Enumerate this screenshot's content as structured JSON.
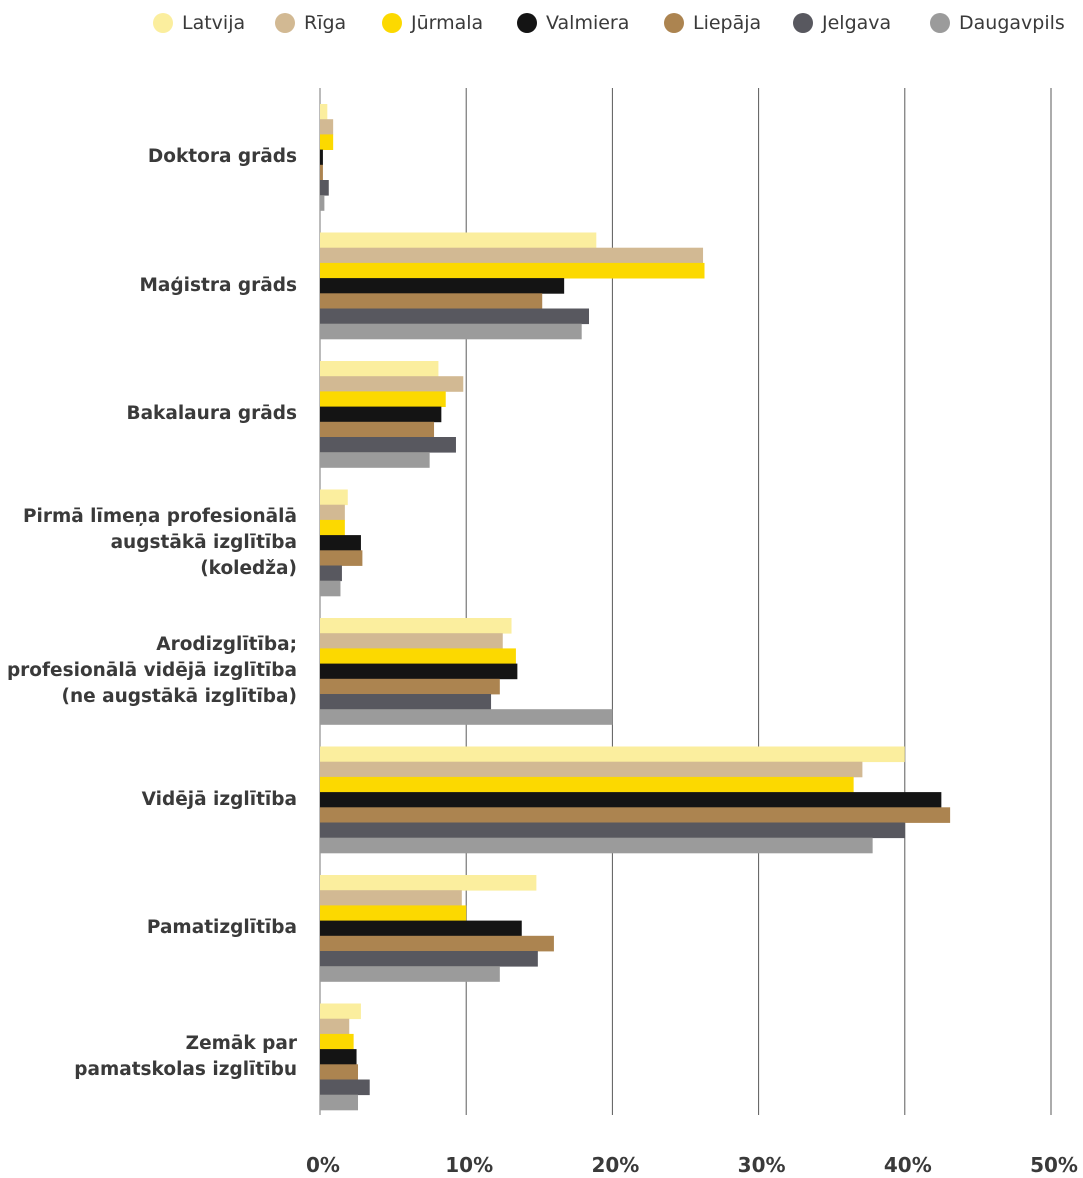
{
  "chart_data": {
    "type": "bar",
    "orientation": "horizontal",
    "categories": [
      "Doktora grāds",
      "Maģistra grāds",
      "Bakalaura grāds",
      "Pirmā līmeņa profesionālā augstākā izglītība (koledža)",
      "Arodizglītība; profesionālā vidējā izglītība (ne augstākā izglītība)",
      "Vidējā izglītība",
      "Pamatizglītība",
      "Zemāk par pamatskolas izglītību"
    ],
    "category_lines": [
      [
        "Doktora grāds"
      ],
      [
        "Maģistra grāds"
      ],
      [
        "Bakalaura grāds"
      ],
      [
        "Pirmā līmeņa profesionālā",
        "augstākā izglītība",
        "(koledža)"
      ],
      [
        "Arodizglītība;",
        "profesionālā vidējā izglītība",
        "(ne augstākā izglītība)"
      ],
      [
        "Vidējā izglītība"
      ],
      [
        "Pamatizglītība"
      ],
      [
        "Zemāk par",
        "pamatskolas izglītību"
      ]
    ],
    "series": [
      {
        "name": "Latvija",
        "color": "#fbee9e",
        "values": [
          0.5,
          18.9,
          8.1,
          1.9,
          13.1,
          40.0,
          14.8,
          2.8
        ]
      },
      {
        "name": "Rīga",
        "color": "#d2b993",
        "values": [
          0.9,
          26.2,
          9.8,
          1.7,
          12.5,
          37.1,
          9.7,
          2.0
        ]
      },
      {
        "name": "Jūrmala",
        "color": "#fcd900",
        "values": [
          0.9,
          26.3,
          8.6,
          1.7,
          13.4,
          36.5,
          10.0,
          2.3
        ]
      },
      {
        "name": "Valmiera",
        "color": "#141414",
        "values": [
          0.2,
          16.7,
          8.3,
          2.8,
          13.5,
          42.5,
          13.8,
          2.5
        ]
      },
      {
        "name": "Liepāja",
        "color": "#ac8450",
        "values": [
          0.2,
          15.2,
          7.8,
          2.9,
          12.3,
          43.1,
          16.0,
          2.6
        ]
      },
      {
        "name": "Jelgava",
        "color": "#58585f",
        "values": [
          0.6,
          18.4,
          9.3,
          1.5,
          11.7,
          40.0,
          14.9,
          3.4
        ]
      },
      {
        "name": "Daugavpils",
        "color": "#9b9b9b",
        "values": [
          0.3,
          17.9,
          7.5,
          1.4,
          20.0,
          37.8,
          12.3,
          2.6
        ]
      }
    ],
    "x_ticks": [
      "0%",
      "10%",
      "20%",
      "30%",
      "40%",
      "50%"
    ],
    "xlim": [
      0,
      50
    ],
    "grid": true,
    "legend_position": "top"
  }
}
